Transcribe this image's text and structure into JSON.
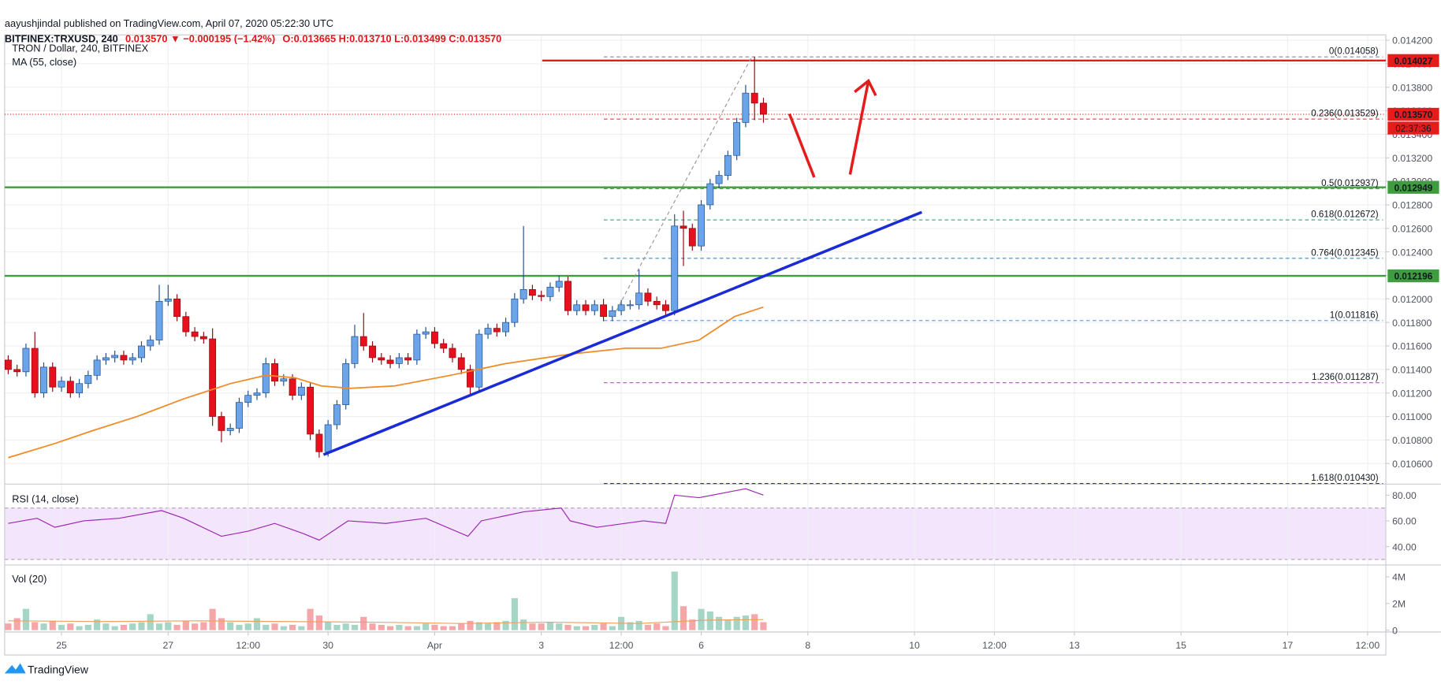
{
  "header": {
    "author_line": "aayushjindal published on TradingView.com, April 07, 2020 05:22:30 UTC",
    "symbol": "BITFINEX:TRXUSD, 240",
    "change": "0.013570 ▼ −0.000195 (−1.42%)",
    "ohlc": "O:0.013665 H:0.013710 L:0.013499 C:0.013570"
  },
  "footer": {
    "brand": "TradingView"
  },
  "chart_data": [
    {
      "type": "candlestick",
      "title": "TRON / Dollar, 240, BITFINEX",
      "up_color": "#6ba4e8",
      "down_color": "#e8101c",
      "grid": true,
      "xlim": [
        -25.6,
        596.2
      ],
      "ylim": [
        0.010425,
        0.014245
      ],
      "yticks": [
        {
          "value": 0.0106,
          "label": "0.010600"
        },
        {
          "value": 0.0108,
          "label": "0.010800"
        },
        {
          "value": 0.011,
          "label": "0.011000"
        },
        {
          "value": 0.0112,
          "label": "0.011200"
        },
        {
          "value": 0.0114,
          "label": "0.011400"
        },
        {
          "value": 0.0116,
          "label": "0.011600"
        },
        {
          "value": 0.0118,
          "label": "0.011800"
        },
        {
          "value": 0.012,
          "label": "0.012000"
        },
        {
          "value": 0.0122,
          "label": "0.012200"
        },
        {
          "value": 0.0124,
          "label": "0.012400"
        },
        {
          "value": 0.0126,
          "label": "0.012600"
        },
        {
          "value": 0.0128,
          "label": "0.012800"
        },
        {
          "value": 0.013,
          "label": "0.013000"
        },
        {
          "value": 0.0132,
          "label": "0.013200"
        },
        {
          "value": 0.0134,
          "label": "0.013400"
        },
        {
          "value": 0.0136,
          "label": "0.013600"
        },
        {
          "value": 0.0138,
          "label": "0.013800"
        },
        {
          "value": 0.014,
          "label": "0.014000"
        },
        {
          "value": 0.0142,
          "label": "0.014200"
        }
      ],
      "x": [
        -24,
        -20,
        -16,
        -12,
        -8,
        -4,
        0,
        4,
        8,
        12,
        16,
        20,
        24,
        28,
        32,
        36,
        40,
        44,
        48,
        52,
        56,
        60,
        64,
        68,
        72,
        76,
        80,
        84,
        88,
        92,
        96,
        100,
        104,
        108,
        112,
        116,
        120,
        124,
        128,
        132,
        136,
        140,
        144,
        148,
        152,
        156,
        160,
        164,
        168,
        172,
        176,
        180,
        184,
        188,
        192,
        196,
        200,
        204,
        208,
        212,
        216,
        220,
        224,
        228,
        232,
        236,
        240,
        244,
        248,
        252,
        256,
        260,
        264,
        268,
        272,
        276,
        280,
        284,
        288,
        292,
        296,
        300,
        304,
        308,
        312,
        316
      ],
      "open": [
        0.01148,
        0.0114,
        0.01138,
        0.01158,
        0.0112,
        0.01142,
        0.01125,
        0.0113,
        0.0112,
        0.01128,
        0.01135,
        0.01148,
        0.0115,
        0.01152,
        0.01148,
        0.0115,
        0.0116,
        0.01165,
        0.01198,
        0.012,
        0.01185,
        0.01172,
        0.01168,
        0.01166,
        0.011,
        0.01088,
        0.0109,
        0.01112,
        0.01118,
        0.0112,
        0.01145,
        0.0113,
        0.01132,
        0.01118,
        0.01125,
        0.01085,
        0.0107,
        0.01093,
        0.0111,
        0.01145,
        0.01168,
        0.0116,
        0.0115,
        0.01148,
        0.01145,
        0.0115,
        0.01148,
        0.0117,
        0.01172,
        0.01162,
        0.01158,
        0.0115,
        0.0114,
        0.01125,
        0.0117,
        0.01175,
        0.01172,
        0.0118,
        0.012,
        0.01208,
        0.01203,
        0.01202,
        0.0121,
        0.01215,
        0.0119,
        0.01195,
        0.0119,
        0.01195,
        0.01185,
        0.0119,
        0.01195,
        0.01195,
        0.01205,
        0.01198,
        0.01195,
        0.0119,
        0.01262,
        0.0126,
        0.01245,
        0.0128,
        0.01298,
        0.01305,
        0.01322,
        0.0135,
        0.01375,
        0.013665
      ],
      "high": [
        0.01152,
        0.01144,
        0.01162,
        0.01172,
        0.01146,
        0.01146,
        0.01134,
        0.01134,
        0.01132,
        0.01139,
        0.01152,
        0.01154,
        0.01156,
        0.01156,
        0.01154,
        0.01164,
        0.01169,
        0.01212,
        0.01212,
        0.01204,
        0.01189,
        0.01176,
        0.01172,
        0.01175,
        0.01104,
        0.01094,
        0.01116,
        0.01122,
        0.01124,
        0.0115,
        0.01149,
        0.01136,
        0.01136,
        0.01129,
        0.01129,
        0.01089,
        0.01097,
        0.01114,
        0.01149,
        0.01178,
        0.01188,
        0.01164,
        0.01154,
        0.01152,
        0.01154,
        0.01154,
        0.01174,
        0.01176,
        0.01176,
        0.01166,
        0.01162,
        0.01154,
        0.01144,
        0.01174,
        0.01179,
        0.01179,
        0.01184,
        0.01205,
        0.01262,
        0.01212,
        0.01207,
        0.01214,
        0.0122,
        0.01219,
        0.01199,
        0.01199,
        0.01199,
        0.012,
        0.01194,
        0.01199,
        0.01199,
        0.01225,
        0.01209,
        0.01202,
        0.01199,
        0.01272,
        0.01275,
        0.01264,
        0.01284,
        0.01302,
        0.01309,
        0.01326,
        0.01354,
        0.01382,
        0.01406,
        0.01371
      ],
      "low": [
        0.01136,
        0.01134,
        0.01134,
        0.01116,
        0.01116,
        0.01121,
        0.01121,
        0.01116,
        0.01116,
        0.01124,
        0.01131,
        0.01144,
        0.01146,
        0.01144,
        0.01144,
        0.01146,
        0.01156,
        0.01161,
        0.01194,
        0.01181,
        0.01168,
        0.01164,
        0.01162,
        0.01092,
        0.01078,
        0.01084,
        0.01086,
        0.01108,
        0.01114,
        0.01116,
        0.01126,
        0.01126,
        0.01114,
        0.01114,
        0.0108,
        0.01065,
        0.01066,
        0.01089,
        0.01106,
        0.01141,
        0.01156,
        0.01146,
        0.01144,
        0.01141,
        0.01141,
        0.01144,
        0.01144,
        0.01166,
        0.01158,
        0.01154,
        0.01146,
        0.01136,
        0.01118,
        0.01121,
        0.01166,
        0.01168,
        0.01168,
        0.01176,
        0.01196,
        0.01199,
        0.01198,
        0.01198,
        0.01206,
        0.01186,
        0.01186,
        0.01186,
        0.01186,
        0.01181,
        0.01181,
        0.01186,
        0.01191,
        0.01191,
        0.01194,
        0.01191,
        0.01186,
        0.01186,
        0.01228,
        0.01241,
        0.01241,
        0.01276,
        0.01294,
        0.01301,
        0.01318,
        0.01346,
        0.01352,
        0.013499
      ],
      "close": [
        0.0114,
        0.01138,
        0.01158,
        0.0112,
        0.01142,
        0.01125,
        0.0113,
        0.0112,
        0.01128,
        0.01135,
        0.01148,
        0.0115,
        0.01152,
        0.01148,
        0.0115,
        0.0116,
        0.01165,
        0.01198,
        0.012,
        0.01185,
        0.01172,
        0.01168,
        0.01166,
        0.011,
        0.01088,
        0.0109,
        0.01112,
        0.01118,
        0.0112,
        0.01145,
        0.0113,
        0.01132,
        0.01118,
        0.01125,
        0.01085,
        0.0107,
        0.01093,
        0.0111,
        0.01145,
        0.01168,
        0.0116,
        0.0115,
        0.01148,
        0.01145,
        0.0115,
        0.01148,
        0.0117,
        0.01172,
        0.01162,
        0.01158,
        0.0115,
        0.0114,
        0.01125,
        0.0117,
        0.01175,
        0.01172,
        0.0118,
        0.012,
        0.01208,
        0.01203,
        0.01202,
        0.0121,
        0.01215,
        0.0119,
        0.01195,
        0.0119,
        0.01195,
        0.01185,
        0.0119,
        0.01195,
        0.01195,
        0.01205,
        0.01198,
        0.01195,
        0.0119,
        0.01262,
        0.0126,
        0.01245,
        0.0128,
        0.01298,
        0.01305,
        0.01322,
        0.0135,
        0.01375,
        0.013665,
        0.01357
      ],
      "series": [
        {
          "name": "MA (55, close)",
          "color": "#f08a24",
          "x": [
            -24,
            -3,
            14,
            34,
            55,
            76,
            92,
            105,
            117,
            130,
            150,
            175,
            200,
            229,
            254,
            270,
            287,
            303,
            316
          ],
          "values": [
            0.01065,
            0.01077,
            0.01088,
            0.011,
            0.01115,
            0.01128,
            0.01135,
            0.01133,
            0.01126,
            0.01124,
            0.01126,
            0.01135,
            0.01145,
            0.01153,
            0.01158,
            0.01158,
            0.01165,
            0.01185,
            0.01193
          ]
        }
      ],
      "levels": [
        {
          "value": 0.014027,
          "label": "0.014027",
          "color": "#e41c1c",
          "line_style": "solid"
        },
        {
          "value": 0.01357,
          "label": "0.013570",
          "color": "#e41c1c",
          "line_style": "dotted"
        },
        {
          "value": 0.012949,
          "label": "0.012949",
          "color": "#3f9c3f",
          "line_style": "solid"
        },
        {
          "value": 0.012196,
          "label": "0.012196",
          "color": "#3f9c3f",
          "line_style": "solid"
        }
      ],
      "countdown": "02:37:36",
      "fib_levels": [
        {
          "value": 0.014058,
          "label": "0(0.014058)",
          "color": "#8a8a8a"
        },
        {
          "value": 0.013529,
          "label": "0.236(0.013529)",
          "color": "#e05050"
        },
        {
          "value": 0.012937,
          "label": "0.5(0.012937)",
          "color": "#6a9a3a"
        },
        {
          "value": 0.012672,
          "label": "0.618(0.012672)",
          "color": "#2aa67a"
        },
        {
          "value": 0.012345,
          "label": "0.764(0.012345)",
          "color": "#3a8ad6"
        },
        {
          "value": 0.011816,
          "label": "1(0.011816)",
          "color": "#6aa6e0"
        },
        {
          "value": 0.011287,
          "label": "1.236(0.011287)",
          "color": "#b050c0"
        },
        {
          "value": 0.01043,
          "label": "1.618(0.010430)",
          "color": "#3030a0"
        }
      ]
    },
    {
      "type": "line",
      "title": "RSI (14, close)",
      "color": "#9c27b0",
      "band_color": "#f3e5fb",
      "bands": [
        30,
        70
      ],
      "xlim": [
        -25.6,
        596.2
      ],
      "ylim": [
        25.7,
        88.6
      ],
      "yticks": [
        {
          "value": 40,
          "label": "40.00"
        },
        {
          "value": 60,
          "label": "60.00"
        },
        {
          "value": 80,
          "label": "80.00"
        }
      ],
      "x": [
        -24,
        -11,
        -3,
        10,
        26,
        45,
        55,
        72,
        84,
        96,
        109,
        116,
        129,
        146,
        164,
        183,
        189,
        208,
        225,
        229,
        241,
        262,
        272,
        276,
        287,
        299,
        308,
        316
      ],
      "values": [
        58,
        62,
        55,
        60,
        62,
        68,
        62,
        48,
        52,
        58,
        50,
        45,
        60,
        58,
        62,
        48,
        60,
        67,
        70,
        60,
        55,
        60,
        58,
        80,
        78,
        82,
        85,
        80
      ]
    },
    {
      "type": "bar",
      "title": "Vol (20)",
      "up_color": "#a5d6c5",
      "down_color": "#f5a6a9",
      "xlim": [
        -25.6,
        596.2
      ],
      "ylim": [
        -137900,
        4896000
      ],
      "yticks": [
        0,
        {
          "value": 2000000,
          "label": "2M"
        },
        {
          "value": 4000000,
          "label": "4M"
        }
      ],
      "xticks": [
        {
          "value": 0,
          "label": "25"
        },
        {
          "value": 48,
          "label": "27"
        },
        {
          "value": 84,
          "label": "12:00"
        },
        {
          "value": 120,
          "label": "30"
        },
        {
          "value": 168,
          "label": "Apr"
        },
        {
          "value": 216,
          "label": "3"
        },
        {
          "value": 252,
          "label": "12:00"
        },
        {
          "value": 288,
          "label": "6"
        },
        {
          "value": 336,
          "label": "8"
        },
        {
          "value": 384,
          "label": "10"
        },
        {
          "value": 420,
          "label": "12:00"
        },
        {
          "value": 456,
          "label": "13"
        },
        {
          "value": 504,
          "label": "15"
        },
        {
          "value": 552,
          "label": "17"
        },
        {
          "value": 588,
          "label": "12:00"
        }
      ],
      "x": [
        -24,
        -20,
        -16,
        -12,
        -8,
        -4,
        0,
        4,
        8,
        12,
        16,
        20,
        24,
        28,
        32,
        36,
        40,
        44,
        48,
        52,
        56,
        60,
        64,
        68,
        72,
        76,
        80,
        84,
        88,
        92,
        96,
        100,
        104,
        108,
        112,
        116,
        120,
        124,
        128,
        132,
        136,
        140,
        144,
        148,
        152,
        156,
        160,
        164,
        168,
        172,
        176,
        180,
        184,
        188,
        192,
        196,
        200,
        204,
        208,
        212,
        216,
        220,
        224,
        228,
        232,
        236,
        240,
        244,
        248,
        252,
        256,
        260,
        264,
        268,
        272,
        276,
        280,
        284,
        288,
        292,
        296,
        300,
        304,
        308,
        312,
        316
      ],
      "values": [
        500000,
        900000,
        1600000,
        600000,
        500000,
        700000,
        400000,
        500000,
        300000,
        400000,
        800000,
        500000,
        300000,
        400000,
        500000,
        600000,
        1200000,
        500000,
        600000,
        400000,
        700000,
        500000,
        600000,
        1600000,
        900000,
        600000,
        400000,
        500000,
        900000,
        400000,
        500000,
        300000,
        400000,
        300000,
        1600000,
        1100000,
        600000,
        400000,
        500000,
        400000,
        1000000,
        500000,
        400000,
        300000,
        400000,
        300000,
        300000,
        500000,
        400000,
        300000,
        300000,
        500000,
        700000,
        600000,
        500000,
        600000,
        700000,
        2400000,
        800000,
        500000,
        500000,
        600000,
        500000,
        400000,
        300000,
        300000,
        400000,
        500000,
        300000,
        1000000,
        600000,
        700000,
        400000,
        500000,
        300000,
        4400000,
        1800000,
        800000,
        1600000,
        1400000,
        1000000,
        800000,
        1000000,
        1100000,
        1200000,
        600000
      ],
      "series": [
        {
          "color": "#f0a060",
          "x": [
            -24,
            20,
            60,
            100,
            140,
            180,
            220,
            260,
            290,
            316
          ],
          "values": [
            700000,
            650000,
            700000,
            650000,
            600000,
            500000,
            600000,
            500000,
            750000,
            800000
          ]
        }
      ]
    }
  ]
}
